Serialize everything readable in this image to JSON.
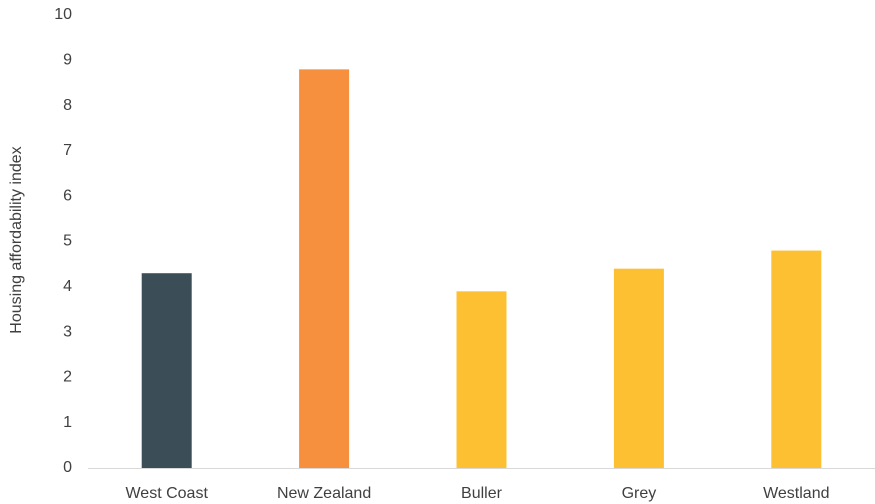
{
  "chart_data": {
    "type": "bar",
    "title": "",
    "xlabel": "",
    "ylabel": "Housing affordability index",
    "categories": [
      "West Coast",
      "New Zealand",
      "Buller",
      "Grey",
      "Westland"
    ],
    "values": [
      4.3,
      8.8,
      3.9,
      4.4,
      4.8
    ],
    "colors": [
      "#3b4d57",
      "#f68f3e",
      "#fdc033",
      "#fdc033",
      "#fdc033"
    ],
    "ylim": [
      0,
      10
    ],
    "yticks": [
      "0",
      "1",
      "2",
      "3",
      "4",
      "5",
      "6",
      "7",
      "8",
      "9",
      "10"
    ],
    "grid": false,
    "legend": "none"
  }
}
